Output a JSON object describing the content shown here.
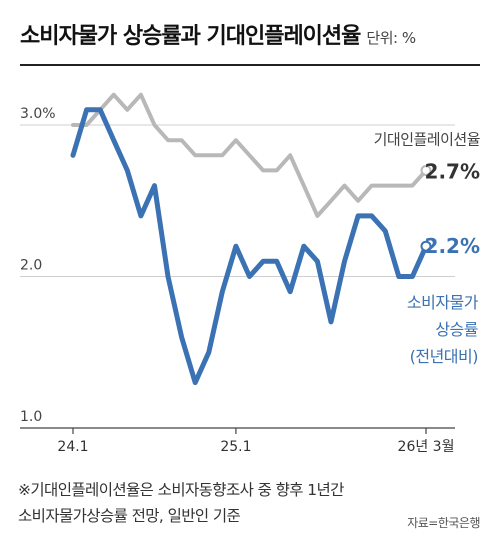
{
  "header": {
    "title": "소비자물가 상승률과 기대인플레이션율",
    "unit": "단위: %"
  },
  "footer": {
    "note_line1": "※기대인플레이션율은 소비자동향조사 중 향후 1년간",
    "note_line2": "소비자물가상승률 전망, 일반인 기준",
    "source": "자료=한국은행"
  },
  "chart_data": {
    "type": "line",
    "x": [
      "24.1",
      "24.2",
      "24.3",
      "24.4",
      "24.5",
      "24.6",
      "24.7",
      "24.8",
      "24.9",
      "24.10",
      "24.11",
      "24.12",
      "25.1",
      "25.2",
      "25.3",
      "25.4",
      "25.5",
      "25.6",
      "25.7",
      "25.8",
      "25.9",
      "25.10",
      "25.11",
      "25.12",
      "26.1",
      "26.2",
      "26.3"
    ],
    "x_tick_labels": [
      {
        "index": 0,
        "label": "24.1"
      },
      {
        "index": 12,
        "label": "25.1"
      },
      {
        "index": 26,
        "label": "26년 3월"
      }
    ],
    "y_ticks": [
      {
        "value": 3.0,
        "label": "3.0%"
      },
      {
        "value": 2.0,
        "label": "2.0"
      },
      {
        "value": 1.0,
        "label": "1.0"
      }
    ],
    "ylim": [
      1.0,
      3.2
    ],
    "grid": true,
    "series": [
      {
        "name": "기대인플레이션율",
        "color": "#b8b8b8",
        "values": [
          3.0,
          3.0,
          3.1,
          3.2,
          3.1,
          3.2,
          3.0,
          2.9,
          2.9,
          2.8,
          2.8,
          2.8,
          2.9,
          2.8,
          2.7,
          2.7,
          2.8,
          2.6,
          2.4,
          2.5,
          2.6,
          2.5,
          2.6,
          2.6,
          2.6,
          2.6,
          2.7
        ],
        "end_label": "2.7",
        "end_unit": "%"
      },
      {
        "name": "소비자물가 상승률 (전년대비)",
        "color": "#3a72b4",
        "label_lines": [
          "소비자물가",
          "상승률",
          "(전년대비)"
        ],
        "values": [
          2.8,
          3.1,
          3.1,
          2.9,
          2.7,
          2.4,
          2.6,
          2.0,
          1.6,
          1.3,
          1.5,
          1.9,
          2.2,
          2.0,
          2.1,
          2.1,
          1.9,
          2.2,
          2.1,
          1.7,
          2.1,
          2.4,
          2.4,
          2.3,
          2.0,
          2.0,
          2.2
        ],
        "end_label": "2.2",
        "end_unit": "%"
      }
    ]
  }
}
